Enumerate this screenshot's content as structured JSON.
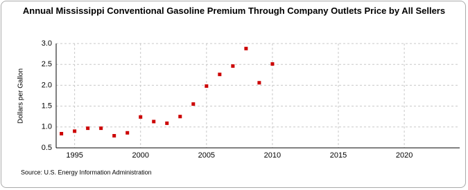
{
  "chart_data": {
    "type": "scatter",
    "title": "Annual Mississippi Conventional Gasoline Premium Through Company Outlets Price by All Sellers",
    "y_label": "Dollars per Gallon",
    "source": "Source: U.S. Energy Information Administration",
    "color": "#cc0000",
    "grid": true,
    "x": [
      1994,
      1995,
      1996,
      1997,
      1998,
      1999,
      2000,
      2001,
      2002,
      2003,
      2004,
      2005,
      2006,
      2007,
      2008,
      2009,
      2010
    ],
    "values": [
      0.84,
      0.9,
      0.97,
      0.97,
      0.79,
      0.86,
      1.24,
      1.13,
      1.09,
      1.25,
      1.55,
      1.98,
      2.26,
      2.46,
      2.88,
      2.06,
      2.51
    ],
    "xlim": [
      1993.6,
      2024.2
    ],
    "xticks": [
      1995,
      2000,
      2005,
      2010,
      2015,
      2020
    ],
    "ylim": [
      0.5,
      3.0
    ],
    "yticks": [
      {
        "value": 0.5,
        "label": "0.5"
      },
      {
        "value": 1.0,
        "label": "1.0"
      },
      1.5,
      {
        "value": 2.0,
        "label": "2.0"
      },
      2.5,
      {
        "value": 3.0,
        "label": "3.0"
      }
    ]
  }
}
